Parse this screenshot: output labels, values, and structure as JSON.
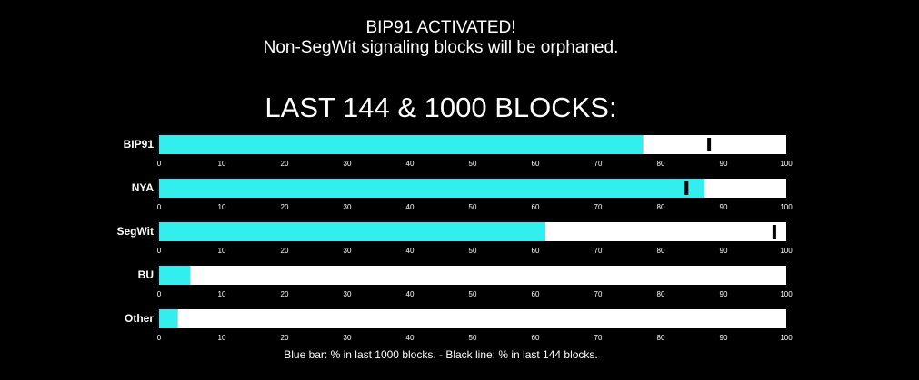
{
  "header": {
    "line1": "BIP91 ACTIVATED!",
    "line2": "Non-SegWit signaling blocks will be orphaned."
  },
  "colors": {
    "background": "#000000",
    "bar_fill": "#33EEEE",
    "track": "#FFFFFF",
    "marker": "#000000",
    "text": "#FFFFFF"
  },
  "chart_data": {
    "type": "bar",
    "orientation": "horizontal",
    "title": "LAST 144 & 1000 BLOCKS:",
    "categories": [
      "BIP91",
      "NYA",
      "SegWit",
      "BU",
      "Other"
    ],
    "series": [
      {
        "name": "Blue bar: % in last 1000 blocks.",
        "values": [
          77.2,
          87.0,
          61.6,
          5.0,
          3.0
        ]
      },
      {
        "name": "Black line: % in last 144 blocks.",
        "values": [
          87.7,
          84.1,
          98.1,
          null,
          null
        ]
      }
    ],
    "ticks": [
      0,
      10,
      20,
      30,
      40,
      50,
      60,
      70,
      80,
      90,
      100
    ],
    "xlim": [
      0,
      100
    ],
    "grid": false,
    "legend": "bottom",
    "footnote": "Blue bar: % in last 1000 blocks. - Black line: % in last 144 blocks."
  }
}
